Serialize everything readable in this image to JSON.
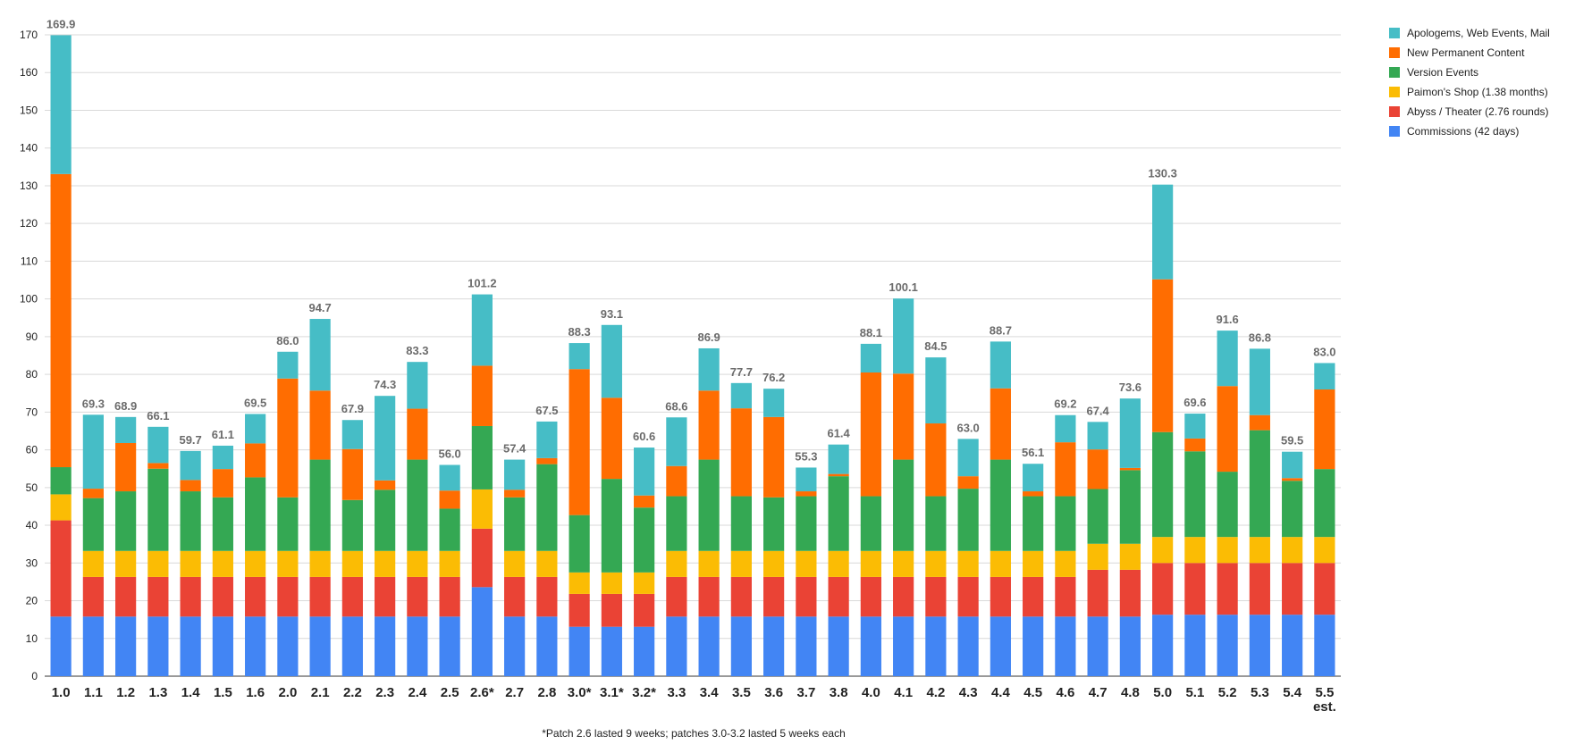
{
  "chart_data": {
    "type": "bar",
    "stacked": true,
    "ylim": [
      0,
      170
    ],
    "yticks": [
      0,
      10,
      20,
      30,
      40,
      50,
      60,
      70,
      80,
      90,
      100,
      110,
      120,
      130,
      140,
      150,
      160,
      170
    ],
    "grid": true,
    "legend_position": "top-right",
    "categories": [
      "1.0",
      "1.1",
      "1.2",
      "1.3",
      "1.4",
      "1.5",
      "1.6",
      "2.0",
      "2.1",
      "2.2",
      "2.3",
      "2.4",
      "2.5",
      "2.6*",
      "2.7",
      "2.8",
      "3.0*",
      "3.1*",
      "3.2*",
      "3.3",
      "3.4",
      "3.5",
      "3.6",
      "3.7",
      "3.8",
      "4.0",
      "4.1",
      "4.2",
      "4.3",
      "4.4",
      "4.5",
      "4.6",
      "4.7",
      "4.8",
      "5.0",
      "5.1",
      "5.2",
      "5.3",
      "5.4",
      "5.5\nest."
    ],
    "totals": [
      "169.9",
      "69.3",
      "68.9",
      "66.1",
      "59.7",
      "61.1",
      "69.5",
      "86.0",
      "94.7",
      "67.9",
      "74.3",
      "83.3",
      "56.0",
      "101.2",
      "57.4",
      "67.5",
      "88.3",
      "93.1",
      "60.6",
      "68.6",
      "86.9",
      "77.7",
      "76.2",
      "55.3",
      "61.4",
      "88.1",
      "100.1",
      "84.5",
      "63.0",
      "88.7",
      "56.1",
      "69.2",
      "67.4",
      "73.6",
      "130.3",
      "69.6",
      "91.6",
      "86.8",
      "59.5",
      "83.0"
    ],
    "series": [
      {
        "name": "Commissions (42 days)",
        "color": "#4285f4",
        "values": [
          15.8,
          15.8,
          15.8,
          15.8,
          15.8,
          15.8,
          15.8,
          15.8,
          15.8,
          15.8,
          15.8,
          15.8,
          15.8,
          23.6,
          15.8,
          15.8,
          13.1,
          13.1,
          13.1,
          15.8,
          15.8,
          15.8,
          15.8,
          15.8,
          15.8,
          15.8,
          15.8,
          15.8,
          15.8,
          15.8,
          15.8,
          15.8,
          15.8,
          15.8,
          16.3,
          16.3,
          16.3,
          16.3,
          16.3,
          16.3
        ]
      },
      {
        "name": "Abyss / Theater (2.76 rounds)",
        "color": "#ea4335",
        "values": [
          25.5,
          10.5,
          10.5,
          10.5,
          10.5,
          10.5,
          10.5,
          10.5,
          10.5,
          10.5,
          10.5,
          10.5,
          10.5,
          15.5,
          10.5,
          10.5,
          8.7,
          8.7,
          8.7,
          10.5,
          10.5,
          10.5,
          10.5,
          10.5,
          10.5,
          10.5,
          10.5,
          10.5,
          10.5,
          10.5,
          10.5,
          10.5,
          12.4,
          12.4,
          13.7,
          13.7,
          13.7,
          13.7,
          13.7,
          13.7
        ]
      },
      {
        "name": "Paimon's Shop (1.38 months)",
        "color": "#fbbc04",
        "values": [
          6.9,
          6.9,
          6.9,
          6.9,
          6.9,
          6.9,
          6.9,
          6.9,
          6.9,
          6.9,
          6.9,
          6.9,
          6.9,
          10.4,
          6.9,
          6.9,
          5.7,
          5.7,
          5.7,
          6.9,
          6.9,
          6.9,
          6.9,
          6.9,
          6.9,
          6.9,
          6.9,
          6.9,
          6.9,
          6.9,
          6.9,
          6.9,
          6.9,
          6.9,
          6.9,
          6.9,
          6.9,
          6.9,
          6.9,
          6.9
        ]
      },
      {
        "name": "Version Events",
        "color": "#34a853",
        "values": [
          7.2,
          14.0,
          15.8,
          21.8,
          15.8,
          14.2,
          19.5,
          14.2,
          24.2,
          13.5,
          16.2,
          24.2,
          11.2,
          16.8,
          14.2,
          23.0,
          15.2,
          24.8,
          17.2,
          14.5,
          24.2,
          14.5,
          14.2,
          14.5,
          19.8,
          14.5,
          24.2,
          14.5,
          16.5,
          24.2,
          14.5,
          14.5,
          14.5,
          19.5,
          27.8,
          22.7,
          17.3,
          28.3,
          14.9,
          18.0
        ]
      },
      {
        "name": "New Permanent Content",
        "color": "#ff6d01",
        "values": [
          77.7,
          2.5,
          12.8,
          1.5,
          3.0,
          7.5,
          9.0,
          31.5,
          18.3,
          13.5,
          2.5,
          13.5,
          4.8,
          16.0,
          2.0,
          1.6,
          38.7,
          21.5,
          3.2,
          8.0,
          18.3,
          23.3,
          21.3,
          1.3,
          0.6,
          32.8,
          22.8,
          19.3,
          3.3,
          18.9,
          1.3,
          14.3,
          10.5,
          0.6,
          40.5,
          3.4,
          22.7,
          4.0,
          0.7,
          21.1
        ]
      },
      {
        "name": "Apologems, Web Events, Mail",
        "color": "#46bdc6",
        "values": [
          36.8,
          19.6,
          6.9,
          9.6,
          7.7,
          6.2,
          7.8,
          7.1,
          19.0,
          7.7,
          22.4,
          12.4,
          6.8,
          18.9,
          8.0,
          9.7,
          6.9,
          19.3,
          12.7,
          12.9,
          11.2,
          6.7,
          7.5,
          6.3,
          7.8,
          7.6,
          19.9,
          17.5,
          9.9,
          12.4,
          7.3,
          7.2,
          7.3,
          18.4,
          25.1,
          6.6,
          14.7,
          17.6,
          7.0,
          7.0
        ]
      }
    ],
    "footnote": "*Patch 2.6 lasted 9 weeks; patches 3.0-3.2 lasted 5 weeks each"
  }
}
